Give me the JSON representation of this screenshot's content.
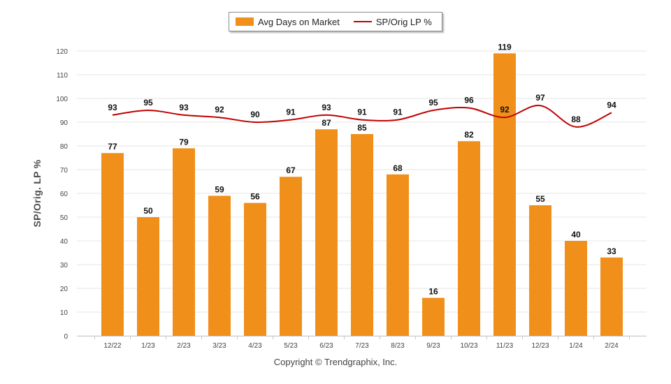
{
  "chart_data": {
    "type": "bar+line",
    "categories": [
      "12/22",
      "1/23",
      "2/23",
      "3/23",
      "4/23",
      "5/23",
      "6/23",
      "7/23",
      "8/23",
      "9/23",
      "10/23",
      "11/23",
      "12/23",
      "1/24",
      "2/24"
    ],
    "series": [
      {
        "name": "Avg Days on Market",
        "kind": "bar",
        "color": "#f0901a",
        "values": [
          77,
          50,
          79,
          59,
          56,
          67,
          87,
          85,
          68,
          16,
          82,
          119,
          55,
          40,
          33
        ]
      },
      {
        "name": "SP/Orig LP %",
        "kind": "line",
        "color": "#c00000",
        "values": [
          93,
          95,
          93,
          92,
          90,
          91,
          93,
          91,
          91,
          95,
          96,
          92,
          97,
          88,
          94
        ]
      }
    ],
    "ylabel": "SP/Orig. LP %",
    "ylim": [
      0,
      120
    ],
    "yticks": [
      0,
      10,
      20,
      30,
      40,
      50,
      60,
      70,
      80,
      90,
      100,
      110,
      120
    ],
    "grid": true,
    "legend": "top-center"
  },
  "footer": "Copyright © Trendgraphix, Inc."
}
